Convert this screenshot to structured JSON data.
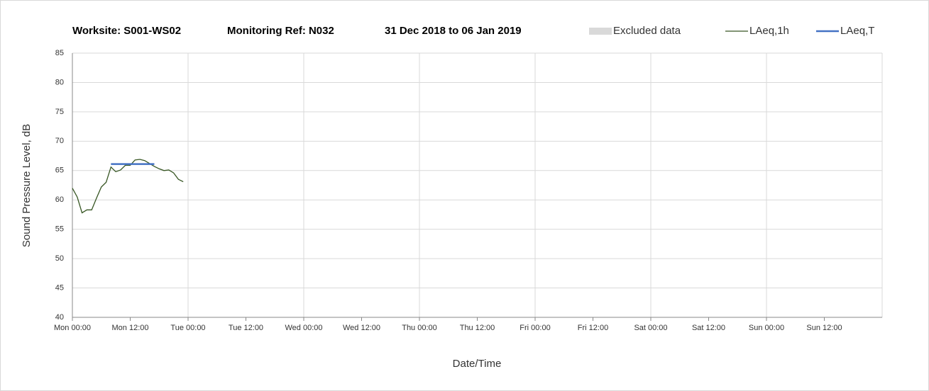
{
  "chart_data": {
    "type": "line",
    "title": [
      "Worksite: S001-WS02",
      "Monitoring Ref: N032",
      "31 Dec 2018 to 06 Jan 2019"
    ],
    "xlabel": "Date/Time",
    "ylabel": "Sound Pressure Level, dB",
    "xlim": [
      0,
      168
    ],
    "xticks": [
      {
        "value": 0,
        "label": "Mon 00:00"
      },
      {
        "value": 12,
        "label": "Mon 12:00"
      },
      {
        "value": 24,
        "label": "Tue 00:00"
      },
      {
        "value": 36,
        "label": "Tue 12:00"
      },
      {
        "value": 48,
        "label": "Wed 00:00"
      },
      {
        "value": 60,
        "label": "Wed 12:00"
      },
      {
        "value": 72,
        "label": "Thu 00:00"
      },
      {
        "value": 84,
        "label": "Thu 12:00"
      },
      {
        "value": 96,
        "label": "Fri 00:00"
      },
      {
        "value": 108,
        "label": "Fri 12:00"
      },
      {
        "value": 120,
        "label": "Sat 00:00"
      },
      {
        "value": 132,
        "label": "Sat 12:00"
      },
      {
        "value": 144,
        "label": "Sun 00:00"
      },
      {
        "value": 156,
        "label": "Sun 12:00"
      }
    ],
    "xgrid": [
      24,
      48,
      72,
      96,
      120,
      144,
      168
    ],
    "ylim": [
      40,
      85
    ],
    "yticks": [
      40,
      45,
      50,
      55,
      60,
      65,
      70,
      75,
      80,
      85
    ],
    "grid": true,
    "legend": "top-right",
    "series": [
      {
        "name": "Excluded data",
        "color": "#d9d9d9",
        "x": [],
        "values": []
      },
      {
        "name": "LAeq,1h",
        "color": "#375623",
        "x": [
          0,
          1,
          2,
          3,
          4,
          5,
          6,
          7,
          8,
          9,
          10,
          11,
          12,
          13,
          14,
          15,
          16,
          17,
          18,
          19,
          20,
          21,
          22,
          23
        ],
        "values": [
          62.0,
          60.5,
          57.8,
          58.3,
          58.3,
          60.3,
          62.2,
          63.0,
          65.6,
          64.8,
          65.1,
          65.9,
          65.9,
          66.8,
          66.9,
          66.7,
          66.2,
          65.7,
          65.3,
          65.0,
          65.1,
          64.6,
          63.5,
          63.1
        ]
      },
      {
        "name": "LAeq,T",
        "color": "#4472c4",
        "x": [
          8,
          17
        ],
        "values": [
          66.1,
          66.1
        ]
      }
    ]
  }
}
